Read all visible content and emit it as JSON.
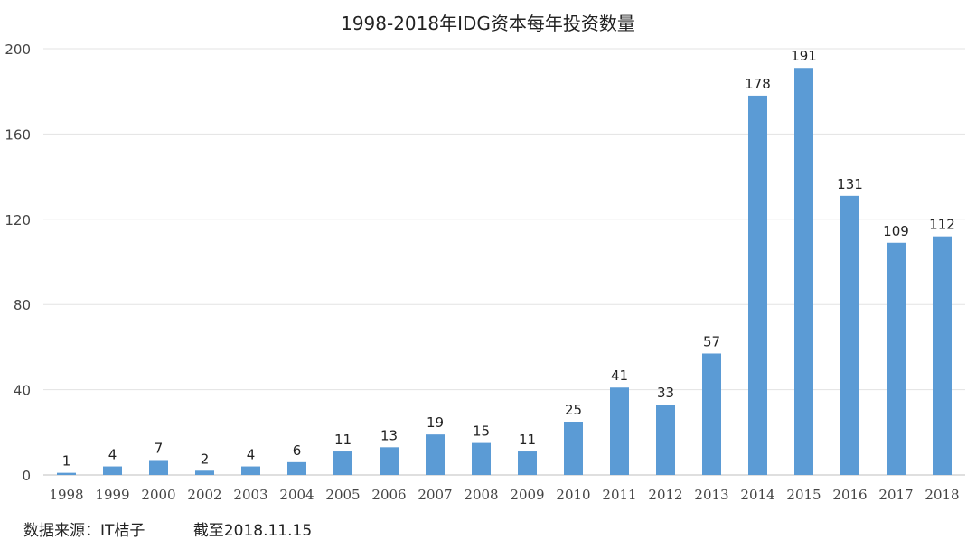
{
  "chart_data": {
    "type": "bar",
    "title": "1998-2018年IDG资本每年投资数量",
    "categories": [
      "1998",
      "1999",
      "2000",
      "2002",
      "2003",
      "2004",
      "2005",
      "2006",
      "2007",
      "2008",
      "2009",
      "2010",
      "2011",
      "2012",
      "2013",
      "2014",
      "2015",
      "2016",
      "2017",
      "2018"
    ],
    "values": [
      1,
      4,
      7,
      2,
      4,
      6,
      11,
      13,
      19,
      15,
      11,
      25,
      41,
      33,
      57,
      178,
      191,
      131,
      109,
      112
    ],
    "xlabel": "",
    "ylabel": "",
    "ylim": [
      0,
      200
    ],
    "yticks": [
      0,
      40,
      80,
      120,
      160,
      200
    ],
    "grid": true,
    "legend": "none",
    "bar_color": "#5b9bd5",
    "data_labels": true
  },
  "footer": {
    "source": "数据来源：IT桔子",
    "as_of": "截至2018.11.15"
  }
}
